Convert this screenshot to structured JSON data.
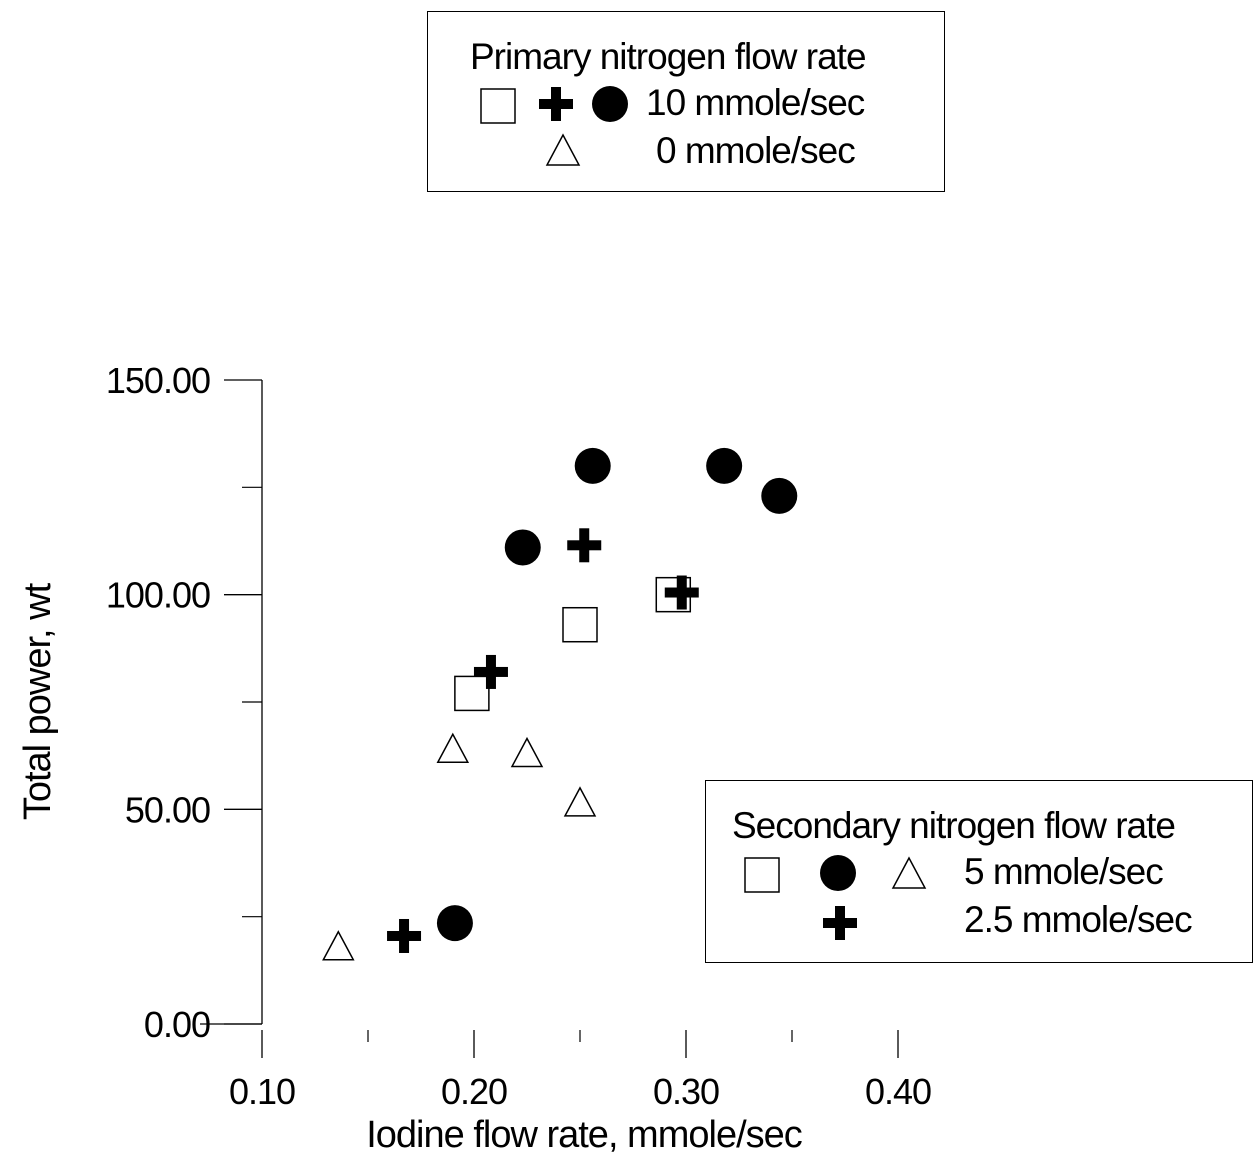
{
  "chart_data": {
    "type": "scatter",
    "title": "",
    "xlabel": "Iodine flow rate, mmole/sec",
    "ylabel": "Total power, wt",
    "xlim": [
      0.1,
      0.4
    ],
    "ylim": [
      0.0,
      150.0
    ],
    "x_ticks": [
      0.1,
      0.2,
      0.3,
      0.4
    ],
    "x_tick_labels": [
      "0.10",
      "0.20",
      "0.30",
      "0.40"
    ],
    "y_ticks": [
      0.0,
      50.0,
      100.0,
      150.0
    ],
    "y_tick_labels": [
      "0.00",
      "50.00",
      "100.00",
      "150.00"
    ],
    "grid": false,
    "series": [
      {
        "marker": "circle",
        "primary_nitrogen": "10 mmole/sec",
        "secondary_nitrogen": "5 mmole/sec",
        "points": [
          {
            "x": 0.191,
            "y": 23.5
          },
          {
            "x": 0.223,
            "y": 111.0
          },
          {
            "x": 0.256,
            "y": 130.0
          },
          {
            "x": 0.318,
            "y": 130.0
          },
          {
            "x": 0.344,
            "y": 123.0
          }
        ]
      },
      {
        "marker": "plus",
        "primary_nitrogen": "10 mmole/sec",
        "secondary_nitrogen": "2.5 mmole/sec",
        "points": [
          {
            "x": 0.167,
            "y": 20.5
          },
          {
            "x": 0.208,
            "y": 82.0
          },
          {
            "x": 0.252,
            "y": 111.5
          },
          {
            "x": 0.298,
            "y": 100.5
          }
        ]
      },
      {
        "marker": "square",
        "primary_nitrogen": "10 mmole/sec",
        "secondary_nitrogen": "5 mmole/sec",
        "points": [
          {
            "x": 0.199,
            "y": 77.0
          },
          {
            "x": 0.25,
            "y": 93.0
          },
          {
            "x": 0.294,
            "y": 100.0
          }
        ]
      },
      {
        "marker": "triangle",
        "primary_nitrogen": "0 mmole/sec",
        "secondary_nitrogen": "5 mmole/sec",
        "points": [
          {
            "x": 0.136,
            "y": 18.0
          },
          {
            "x": 0.19,
            "y": 64.0
          },
          {
            "x": 0.225,
            "y": 63.0
          },
          {
            "x": 0.25,
            "y": 51.5
          }
        ]
      }
    ]
  },
  "legend_primary": {
    "title": "Primary nitrogen flow rate",
    "row1_label": "10 mmole/sec",
    "row2_label": "0 mmole/sec"
  },
  "legend_secondary": {
    "title": "Secondary nitrogen flow rate",
    "row1_label": "5 mmole/sec",
    "row2_label": "2.5 mmole/sec"
  }
}
